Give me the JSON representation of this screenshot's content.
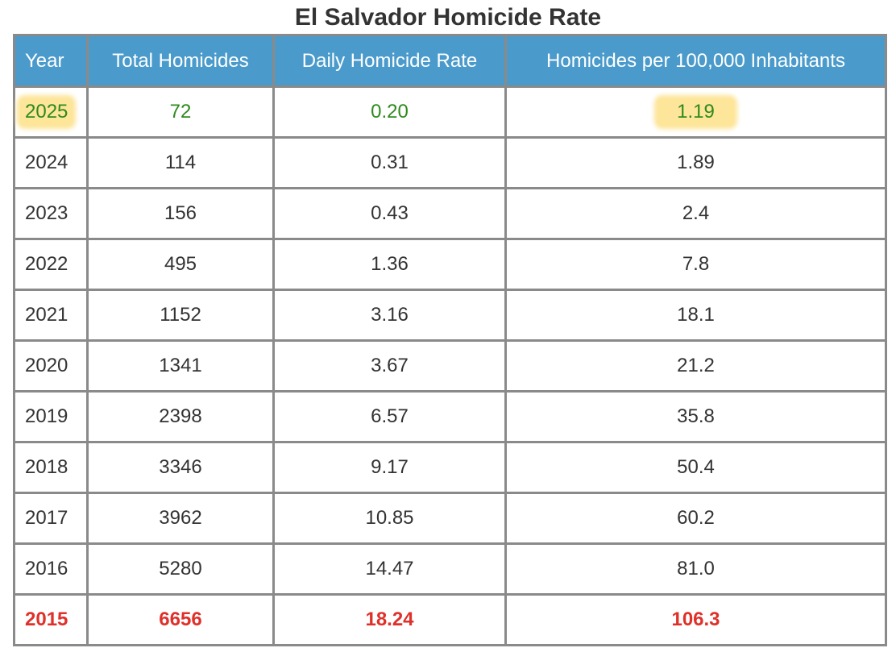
{
  "chart_data": {
    "type": "table",
    "title": "El Salvador Homicide Rate",
    "columns": [
      "Year",
      "Total Homicides",
      "Daily Homicide Rate",
      "Homicides per 100,000 Inhabitants"
    ],
    "rows": [
      [
        "2025",
        "72",
        "0.20",
        "1.19"
      ],
      [
        "2024",
        "114",
        "0.31",
        "1.89"
      ],
      [
        "2023",
        "156",
        "0.43",
        "2.4"
      ],
      [
        "2022",
        "495",
        "1.36",
        "7.8"
      ],
      [
        "2021",
        "1152",
        "3.16",
        "18.1"
      ],
      [
        "2020",
        "1341",
        "3.67",
        "21.2"
      ],
      [
        "2019",
        "2398",
        "6.57",
        "35.8"
      ],
      [
        "2018",
        "3346",
        "9.17",
        "50.4"
      ],
      [
        "2017",
        "3962",
        "10.85",
        "60.2"
      ],
      [
        "2016",
        "5280",
        "14.47",
        "81.0"
      ],
      [
        "2015",
        "6656",
        "18.24",
        "106.3"
      ]
    ],
    "highlighted_row": "2025",
    "highlighted_cells": [
      "Year",
      "Homicides per 100,000 Inhabitants"
    ],
    "peak_row": "2015"
  },
  "colors": {
    "header_bg": "#4a9bcb",
    "header_text": "#ffffff",
    "border": "#8a8a8a",
    "current_year_text": "#2e8a1c",
    "highlight": "#fde59a",
    "peak_year_text": "#e0302a",
    "body_text": "#333333"
  }
}
